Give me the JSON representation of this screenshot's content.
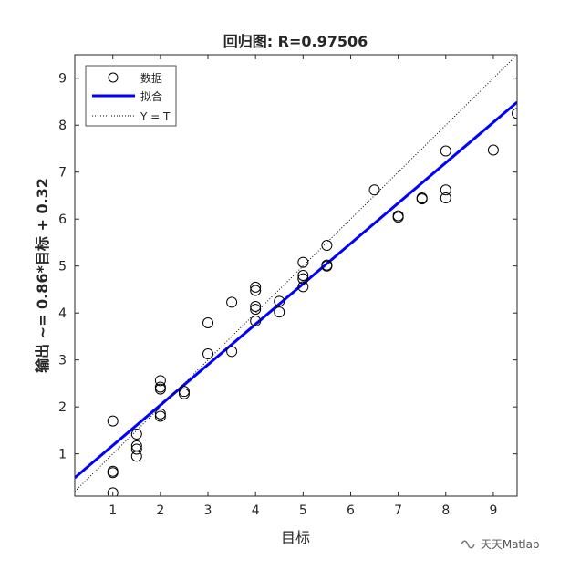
{
  "chart_data": {
    "type": "scatter",
    "title": "回归图: R=0.97506",
    "xlabel": "目标",
    "ylabel": "输出 ~= 0.86*目标 + 0.32",
    "xlim": [
      0.2,
      9.5
    ],
    "ylim": [
      0.1,
      9.5
    ],
    "xticks": [
      1,
      2,
      3,
      4,
      5,
      6,
      7,
      8,
      9
    ],
    "yticks": [
      1,
      2,
      3,
      4,
      5,
      6,
      7,
      8,
      9
    ],
    "grid": false,
    "legend_position": "top-left",
    "series": [
      {
        "name": "数据",
        "kind": "scatter",
        "color": "#000000",
        "points": [
          {
            "x": 1,
            "y": 0.17
          },
          {
            "x": 1,
            "y": 0.6
          },
          {
            "x": 1,
            "y": 0.63
          },
          {
            "x": 1,
            "y": 1.7
          },
          {
            "x": 1.5,
            "y": 0.95
          },
          {
            "x": 1.5,
            "y": 1.1
          },
          {
            "x": 1.5,
            "y": 1.17
          },
          {
            "x": 1.5,
            "y": 1.42
          },
          {
            "x": 2,
            "y": 1.8
          },
          {
            "x": 2,
            "y": 1.85
          },
          {
            "x": 2,
            "y": 2.38
          },
          {
            "x": 2,
            "y": 2.42
          },
          {
            "x": 2,
            "y": 2.56
          },
          {
            "x": 2.5,
            "y": 2.28
          },
          {
            "x": 2.5,
            "y": 2.33
          },
          {
            "x": 3,
            "y": 3.13
          },
          {
            "x": 3,
            "y": 3.79
          },
          {
            "x": 3.5,
            "y": 3.18
          },
          {
            "x": 3.5,
            "y": 4.23
          },
          {
            "x": 4,
            "y": 3.83
          },
          {
            "x": 4,
            "y": 4.08
          },
          {
            "x": 4,
            "y": 4.14
          },
          {
            "x": 4,
            "y": 4.48
          },
          {
            "x": 4,
            "y": 4.55
          },
          {
            "x": 4.5,
            "y": 4.02
          },
          {
            "x": 4.5,
            "y": 4.25
          },
          {
            "x": 5,
            "y": 4.56
          },
          {
            "x": 5,
            "y": 4.73
          },
          {
            "x": 5,
            "y": 4.8
          },
          {
            "x": 5,
            "y": 5.08
          },
          {
            "x": 5.5,
            "y": 5.0
          },
          {
            "x": 5.5,
            "y": 5.02
          },
          {
            "x": 5.5,
            "y": 5.44
          },
          {
            "x": 6.5,
            "y": 6.62
          },
          {
            "x": 7,
            "y": 6.04
          },
          {
            "x": 7,
            "y": 6.07
          },
          {
            "x": 7.5,
            "y": 6.43
          },
          {
            "x": 7.5,
            "y": 6.45
          },
          {
            "x": 8,
            "y": 6.45
          },
          {
            "x": 8,
            "y": 6.62
          },
          {
            "x": 8,
            "y": 7.45
          },
          {
            "x": 9,
            "y": 7.47
          },
          {
            "x": 9.5,
            "y": 8.25
          }
        ]
      },
      {
        "name": "拟合",
        "kind": "line",
        "color": "#0000ff",
        "slope": 0.86,
        "intercept": 0.32
      },
      {
        "name": "Y = T",
        "kind": "line",
        "style": "dotted",
        "color": "#000000",
        "slope": 1,
        "intercept": 0
      }
    ]
  },
  "watermark": {
    "text": "天天Matlab",
    "icon": "wechat-channel-icon"
  }
}
